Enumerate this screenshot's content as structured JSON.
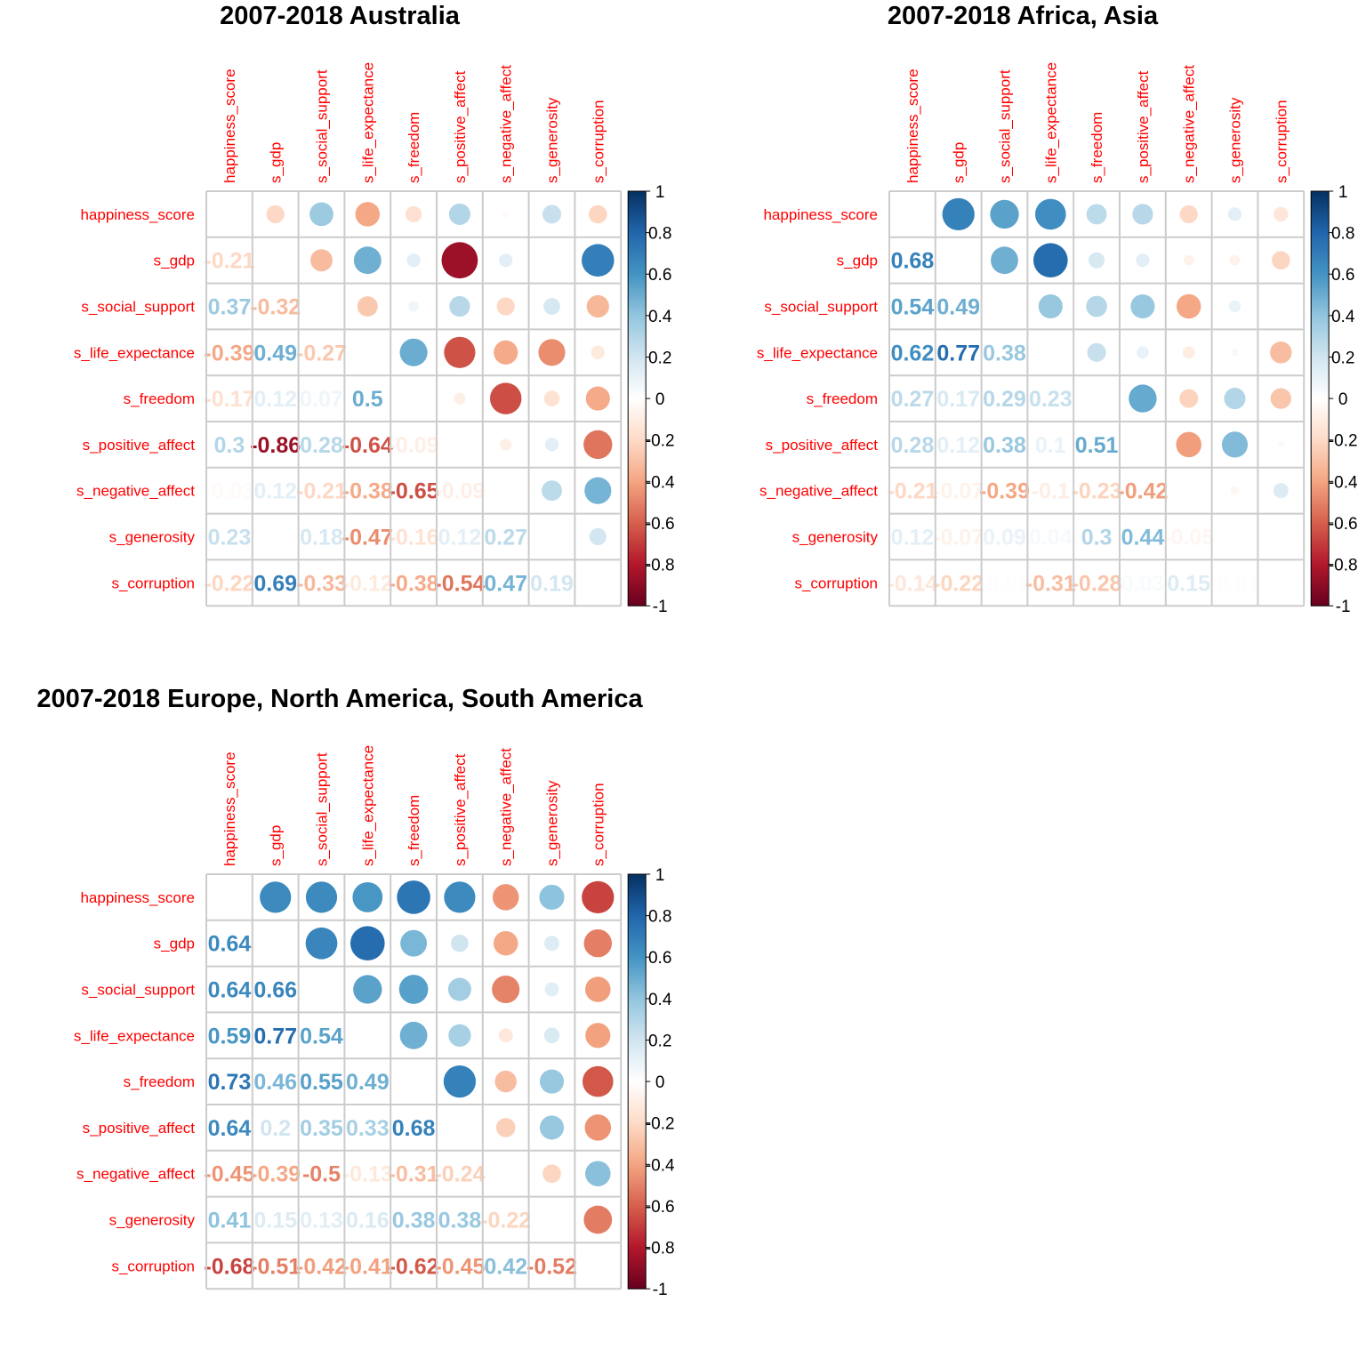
{
  "chart_data": [
    {
      "type": "heatmap",
      "title": "2007-2018 Australia",
      "variables": [
        "happiness_score",
        "s_gdp",
        "s_social_support",
        "s_life_expectance",
        "s_freedom",
        "s_positive_affect",
        "s_negative_affect",
        "s_generosity",
        "s_corruption"
      ],
      "lower_labels": [
        [],
        [
          "-0.21"
        ],
        [
          "0.37",
          "-0.32"
        ],
        [
          "-0.39",
          "0.49",
          "-0.27"
        ],
        [
          "-0.17",
          "0.12",
          "0.07",
          "0.5"
        ],
        [
          "0.3",
          "-0.86",
          "0.28",
          "-0.64",
          "-0.09"
        ],
        [
          "-0.03",
          "0.12",
          "-0.21",
          "-0.38",
          "-0.65",
          "-0.09"
        ],
        [
          "0.23",
          "0",
          "0.18",
          "-0.47",
          "-0.16",
          "0.12",
          "0.27"
        ],
        [
          "-0.22",
          "0.69",
          "-0.33",
          "-0.12",
          "-0.38",
          "-0.54",
          "0.47",
          "0.19"
        ]
      ],
      "matrix": [
        [
          1,
          -0.21,
          0.37,
          -0.39,
          -0.17,
          0.3,
          -0.03,
          0.23,
          -0.22
        ],
        [
          -0.21,
          1,
          -0.32,
          0.49,
          0.12,
          -0.86,
          0.12,
          0,
          0.69
        ],
        [
          0.37,
          -0.32,
          1,
          -0.27,
          0.07,
          0.28,
          -0.21,
          0.18,
          -0.33
        ],
        [
          -0.39,
          0.49,
          -0.27,
          1,
          0.5,
          -0.64,
          -0.38,
          -0.47,
          -0.12
        ],
        [
          -0.17,
          0.12,
          0.07,
          0.5,
          1,
          -0.09,
          -0.65,
          -0.16,
          -0.38
        ],
        [
          0.3,
          -0.86,
          0.28,
          -0.64,
          -0.09,
          1,
          -0.09,
          0.12,
          -0.54
        ],
        [
          -0.03,
          0.12,
          -0.21,
          -0.38,
          -0.65,
          -0.09,
          1,
          0.27,
          0.47
        ],
        [
          0.23,
          0,
          0.18,
          -0.47,
          -0.16,
          0.12,
          0.27,
          1,
          0.19
        ],
        [
          -0.22,
          0.69,
          -0.33,
          -0.12,
          -0.38,
          -0.54,
          0.47,
          0.19,
          1
        ]
      ],
      "colorbar_ticks": [
        "1",
        "0.8",
        "0.6",
        "0.4",
        "0.2",
        "0",
        "-0.2",
        "-0.4",
        "-0.6",
        "-0.8",
        "-1"
      ]
    },
    {
      "type": "heatmap",
      "title": "2007-2018 Africa, Asia",
      "variables": [
        "happiness_score",
        "s_gdp",
        "s_social_support",
        "s_life_expectance",
        "s_freedom",
        "s_positive_affect",
        "s_negative_affect",
        "s_generosity",
        "s_corruption"
      ],
      "lower_labels": [
        [],
        [
          "0.68"
        ],
        [
          "0.54",
          "0.49"
        ],
        [
          "0.62",
          "0.77",
          "0.38"
        ],
        [
          "0.27",
          "0.17",
          "0.29",
          "0.23"
        ],
        [
          "0.28",
          "0.12",
          "0.38",
          "0.1",
          "0.51"
        ],
        [
          "-0.21",
          "-0.07",
          "-0.39",
          "-0.1",
          "-0.23",
          "-0.42"
        ],
        [
          "0.12",
          "-0.07",
          "0.09",
          "0.04",
          "0.3",
          "0.44",
          "-0.05"
        ],
        [
          "-0.14",
          "-0.22",
          "-0.01",
          "-0.31",
          "-0.28",
          "0.03",
          "0.15",
          "-0.01"
        ]
      ],
      "matrix": [
        [
          1,
          0.68,
          0.54,
          0.62,
          0.27,
          0.28,
          -0.21,
          0.12,
          -0.14
        ],
        [
          0.68,
          1,
          0.49,
          0.77,
          0.17,
          0.12,
          -0.07,
          -0.07,
          -0.22
        ],
        [
          0.54,
          0.49,
          1,
          0.38,
          0.29,
          0.38,
          -0.39,
          0.09,
          -0.01
        ],
        [
          0.62,
          0.77,
          0.38,
          1,
          0.23,
          0.1,
          -0.1,
          0.04,
          -0.31
        ],
        [
          0.27,
          0.17,
          0.29,
          0.23,
          1,
          0.51,
          -0.23,
          0.3,
          -0.28
        ],
        [
          0.28,
          0.12,
          0.38,
          0.1,
          0.51,
          1,
          -0.42,
          0.44,
          0.03
        ],
        [
          -0.21,
          -0.07,
          -0.39,
          -0.1,
          -0.23,
          -0.42,
          1,
          -0.05,
          0.15
        ],
        [
          0.12,
          -0.07,
          0.09,
          0.04,
          0.3,
          0.44,
          -0.05,
          1,
          -0.01
        ],
        [
          -0.14,
          -0.22,
          -0.01,
          -0.31,
          -0.28,
          0.03,
          0.15,
          -0.01,
          1
        ]
      ],
      "colorbar_ticks": [
        "1",
        "0.8",
        "0.6",
        "0.4",
        "0.2",
        "0",
        "-0.2",
        "-0.4",
        "-0.6",
        "-0.8",
        "-1"
      ]
    },
    {
      "type": "heatmap",
      "title": "2007-2018 Europe, North America, South America",
      "variables": [
        "happiness_score",
        "s_gdp",
        "s_social_support",
        "s_life_expectance",
        "s_freedom",
        "s_positive_affect",
        "s_negative_affect",
        "s_generosity",
        "s_corruption"
      ],
      "lower_labels": [
        [],
        [
          "0.64"
        ],
        [
          "0.64",
          "0.66"
        ],
        [
          "0.59",
          "0.77",
          "0.54"
        ],
        [
          "0.73",
          "0.46",
          "0.55",
          "0.49"
        ],
        [
          "0.64",
          "0.2",
          "0.35",
          "0.33",
          "0.68"
        ],
        [
          "-0.45",
          "-0.39",
          "-0.5",
          "-0.13",
          "-0.31",
          "-0.24"
        ],
        [
          "0.41",
          "0.15",
          "0.13",
          "0.16",
          "0.38",
          "0.38",
          "-0.22"
        ],
        [
          "-0.68",
          "-0.51",
          "-0.42",
          "-0.41",
          "-0.62",
          "-0.45",
          "0.42",
          "-0.52"
        ]
      ],
      "matrix": [
        [
          1,
          0.64,
          0.64,
          0.59,
          0.73,
          0.64,
          -0.45,
          0.41,
          -0.68
        ],
        [
          0.64,
          1,
          0.66,
          0.77,
          0.46,
          0.2,
          -0.39,
          0.15,
          -0.51
        ],
        [
          0.64,
          0.66,
          1,
          0.54,
          0.55,
          0.35,
          -0.5,
          0.13,
          -0.42
        ],
        [
          0.59,
          0.77,
          0.54,
          1,
          0.49,
          0.33,
          -0.13,
          0.16,
          -0.41
        ],
        [
          0.73,
          0.46,
          0.55,
          0.49,
          1,
          0.68,
          -0.31,
          0.38,
          -0.62
        ],
        [
          0.64,
          0.2,
          0.35,
          0.33,
          0.68,
          1,
          -0.24,
          0.38,
          -0.45
        ],
        [
          -0.45,
          -0.39,
          -0.5,
          -0.13,
          -0.31,
          -0.24,
          1,
          -0.22,
          0.42
        ],
        [
          0.41,
          0.15,
          0.13,
          0.16,
          0.38,
          0.38,
          -0.22,
          1,
          -0.52
        ],
        [
          -0.68,
          -0.51,
          -0.42,
          -0.41,
          -0.62,
          -0.45,
          0.42,
          -0.52,
          1
        ]
      ],
      "colorbar_ticks": [
        "1",
        "0.8",
        "0.6",
        "0.4",
        "0.2",
        "0",
        "-0.2",
        "-0.4",
        "-0.6",
        "-0.8",
        "-1"
      ]
    }
  ],
  "colors": {
    "label": "#ff0000",
    "grid": "#cccccc",
    "scale": [
      "#67001f",
      "#b2182b",
      "#d6604d",
      "#f4a582",
      "#fddbc7",
      "#ffffff",
      "#d1e5f0",
      "#92c5de",
      "#4393c3",
      "#2166ac",
      "#053061"
    ]
  }
}
